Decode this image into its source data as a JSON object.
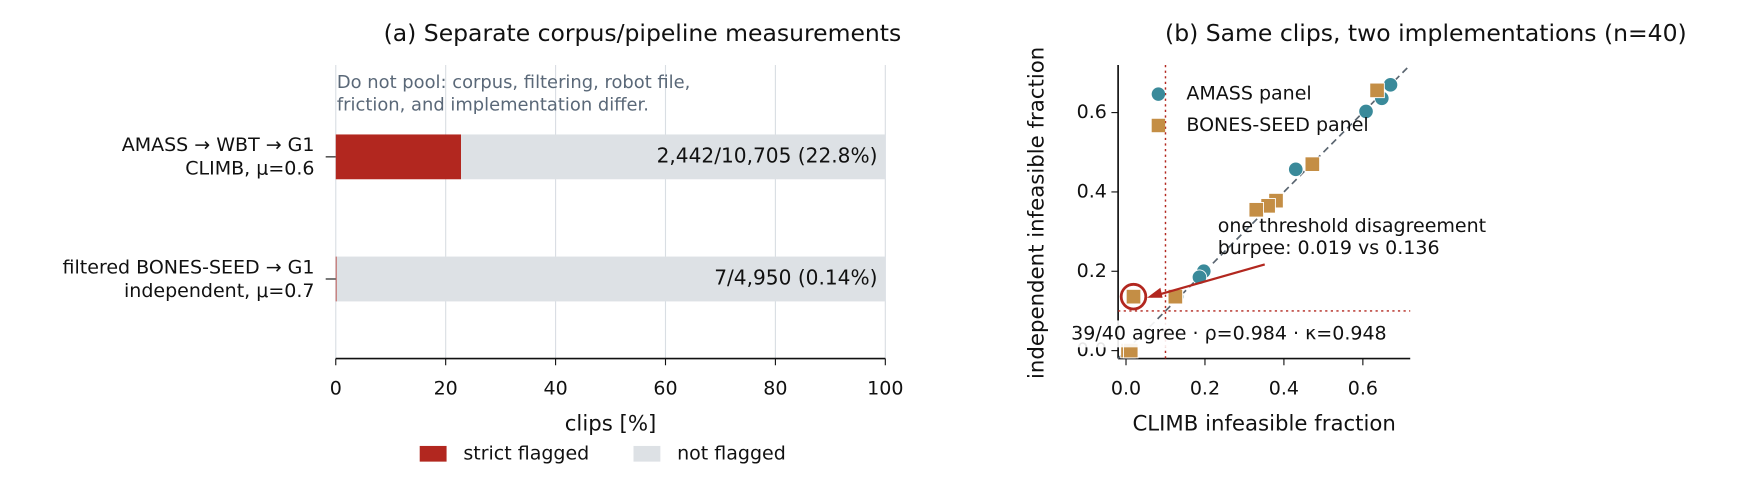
{
  "chart_data": [
    {
      "type": "hbar_stacked",
      "title": "(a) Separate corpus/pipeline measurements",
      "annotation": [
        "Do not pool: corpus, filtering, robot file,",
        "friction, and implementation differ."
      ],
      "categories": [
        [
          "AMASS → WBT → G1",
          "CLIMB, μ=0.6"
        ],
        [
          "filtered BONES-SEED → G1",
          "independent, μ=0.7"
        ]
      ],
      "series": [
        {
          "name": "strict flagged",
          "color": "#b2271f",
          "values": [
            22.8,
            0.14
          ],
          "value_labels": [
            "2,442/10,705  (22.8%)",
            "7/4,950  (0.14%)"
          ]
        },
        {
          "name": "not flagged",
          "color": "#dde1e5",
          "values": [
            77.2,
            99.86
          ]
        }
      ],
      "xlabel": "clips [%]",
      "xlim": [
        0,
        100
      ],
      "xticks": [
        0,
        20,
        40,
        60,
        80,
        100
      ],
      "grid": true,
      "legend": "bottom"
    },
    {
      "type": "scatter",
      "title": "(b) Same clips, two implementations (n=40)",
      "xlabel": "CLIMB infeasible fraction",
      "ylabel": "independent infeasible fraction",
      "series": [
        {
          "name": "AMASS panel",
          "color": "#3a8a9a",
          "marker": "circle",
          "x": [
            0.67,
            0.648,
            0.608,
            0.43,
            0.197,
            0.186,
            0.128,
            0.005
          ],
          "y": [
            0.67,
            0.636,
            0.603,
            0.457,
            0.2,
            0.185,
            0.136,
            0
          ]
        },
        {
          "name": "BONES-SEED panel",
          "color": "#c48e45",
          "marker": "square",
          "x": [
            0.636,
            0.472,
            0.38,
            0.36,
            0.33,
            0.125,
            0.019,
            0.005,
            0.012
          ],
          "y": [
            0.656,
            0.47,
            0.378,
            0.365,
            0.355,
            0.136,
            0.136,
            0,
            0
          ]
        }
      ],
      "xlim": [
        -0.02,
        0.72
      ],
      "ylim": [
        -0.02,
        0.72
      ],
      "xticks": [
        {
          "value": 0,
          "label": "0.0"
        },
        0.2,
        0.4,
        0.6
      ],
      "yticks": [
        {
          "value": 0,
          "label": "0.0"
        },
        0.2,
        0.4,
        0.6
      ],
      "threshold": 0.1,
      "diagonal": true,
      "highlight": {
        "series": 1,
        "index": 6,
        "color": "#b2271f"
      },
      "annotation": [
        "one threshold disagreement",
        "burpee: 0.019 vs 0.136"
      ],
      "stats": "39/40 agree · ρ=0.984 · κ=0.948",
      "legend": "upper left"
    }
  ]
}
